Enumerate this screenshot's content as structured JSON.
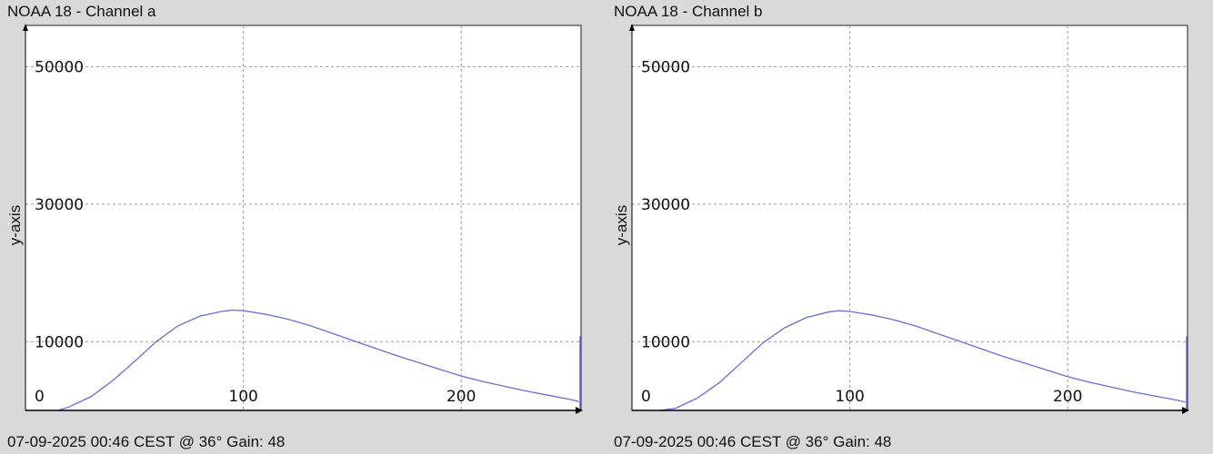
{
  "chart_data": [
    {
      "type": "line",
      "title": "NOAA 18 - Channel a",
      "ylabel": "y-axis",
      "footer": "07-09-2025 00:46 CEST @ 36° Gain: 48",
      "xlim": [
        0,
        255
      ],
      "ylim": [
        0,
        56000
      ],
      "y_ticks": [
        0,
        10000,
        30000,
        50000
      ],
      "x_ticks": [
        100,
        200
      ],
      "grid": true,
      "color": "#6b6bd6",
      "series": [
        {
          "x": [
            15,
            20,
            30,
            40,
            50,
            60,
            70,
            80,
            90,
            95,
            100,
            110,
            120,
            130,
            140,
            150,
            160,
            170,
            180,
            190,
            200,
            210,
            220,
            230,
            240,
            250,
            254
          ],
          "values": [
            0,
            500,
            2000,
            4300,
            7100,
            10000,
            12300,
            13700,
            14400,
            14600,
            14500,
            14000,
            13300,
            12400,
            11300,
            10200,
            9100,
            8000,
            7000,
            6000,
            5000,
            4200,
            3500,
            2800,
            2200,
            1600,
            1300
          ]
        }
      ],
      "end_spike": {
        "x": 255,
        "value": 10800
      }
    },
    {
      "type": "line",
      "title": "NOAA 18 - Channel b",
      "ylabel": "y-axis",
      "footer": "07-09-2025 00:46 CEST @ 36° Gain: 48",
      "xlim": [
        0,
        255
      ],
      "ylim": [
        0,
        56000
      ],
      "y_ticks": [
        0,
        10000,
        30000,
        50000
      ],
      "x_ticks": [
        100,
        200
      ],
      "grid": true,
      "color": "#6b6bd6",
      "series": [
        {
          "x": [
            13,
            20,
            30,
            40,
            50,
            60,
            70,
            80,
            90,
            95,
            100,
            110,
            120,
            130,
            140,
            150,
            160,
            170,
            180,
            190,
            200,
            210,
            220,
            230,
            240,
            250,
            254
          ],
          "values": [
            0,
            300,
            1800,
            4000,
            6900,
            9800,
            12000,
            13500,
            14300,
            14500,
            14400,
            13900,
            13200,
            12300,
            11200,
            10100,
            9000,
            7900,
            6900,
            5900,
            4900,
            4100,
            3400,
            2700,
            2100,
            1500,
            1200
          ]
        }
      ],
      "end_spike": {
        "x": 255,
        "value": 10800
      }
    }
  ]
}
